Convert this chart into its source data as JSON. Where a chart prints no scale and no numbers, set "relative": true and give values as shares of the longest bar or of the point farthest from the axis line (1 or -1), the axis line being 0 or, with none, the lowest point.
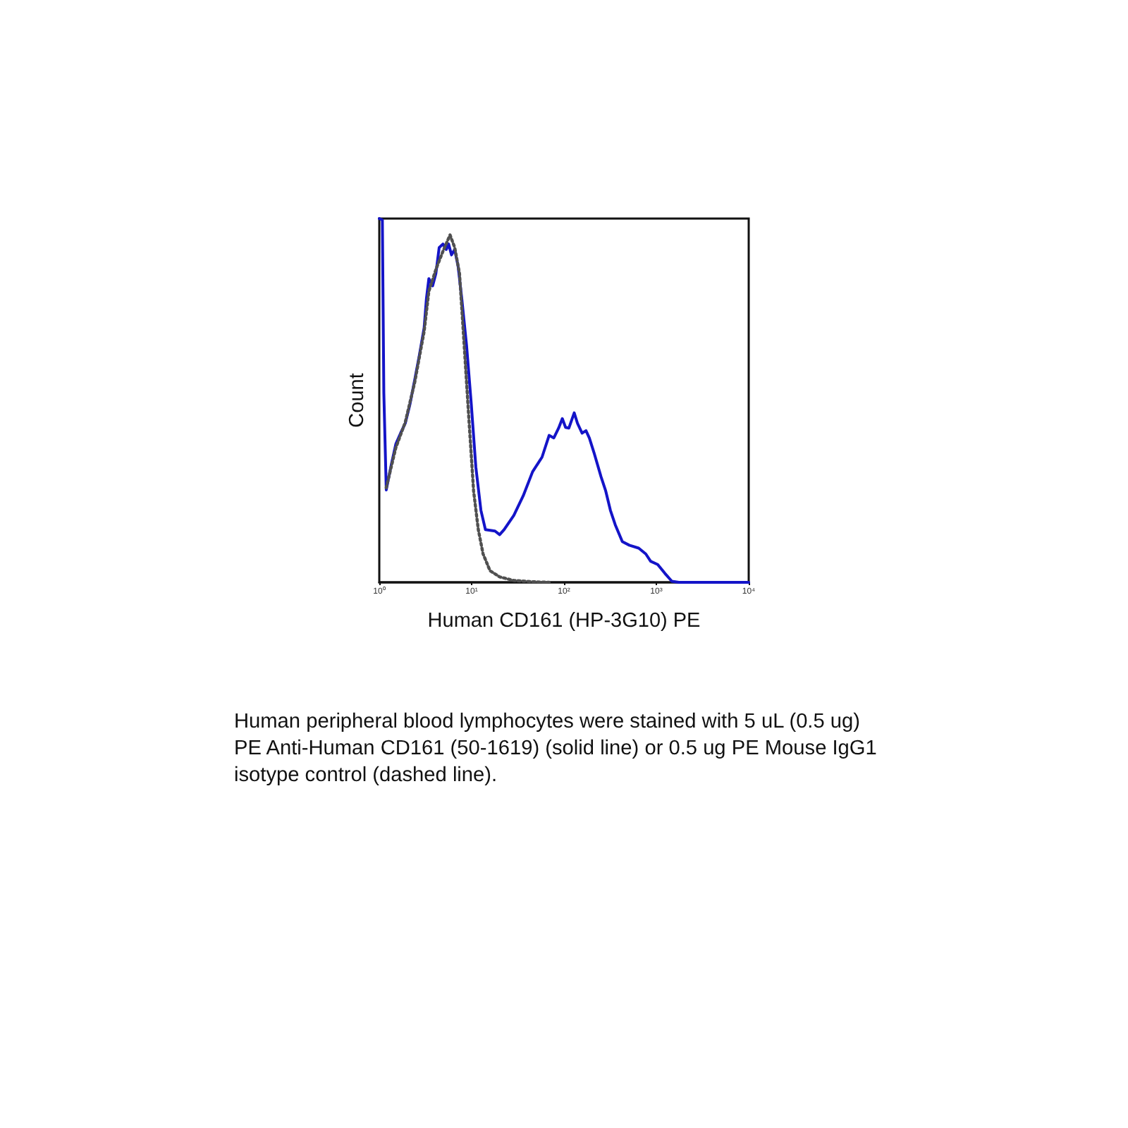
{
  "chart_data": {
    "type": "line",
    "relative": true,
    "log": "x",
    "xlabel": "Human CD161 (HP-3G10) PE",
    "ylabel": "Count",
    "xlim": [
      1,
      10000
    ],
    "xticks": [
      {
        "value": 1,
        "label": "10⁰"
      },
      {
        "value": 10,
        "label": "10¹"
      },
      {
        "value": 100,
        "label": "10²"
      },
      {
        "value": 1000,
        "label": "10³"
      },
      {
        "value": 10000,
        "label": "10⁴"
      }
    ],
    "series": [
      {
        "color": "#1414c8",
        "line_style": "solid",
        "x": [
          1,
          1.08,
          1.12,
          1.19,
          1.34,
          1.51,
          1.7,
          1.91,
          2.15,
          2.42,
          2.71,
          3.06,
          3.24,
          3.44,
          3.78,
          4.1,
          4.45,
          4.89,
          5.31,
          5.63,
          6.05,
          6.56,
          7.14,
          7.82,
          8.82,
          9.91,
          11.1,
          12.6,
          14.1,
          17.9,
          20.1,
          22.5,
          28.6,
          36.2,
          45.7,
          57.8,
          69,
          77.6,
          87.5,
          95.9,
          104,
          113,
          129,
          140,
          157,
          173,
          188,
          211,
          252,
          283,
          318,
          359,
          428,
          510,
          644,
          769,
          867,
          1035,
          1234,
          1472,
          1755,
          10000
        ],
        "values": [
          1,
          0.996,
          0.52,
          0.254,
          0.32,
          0.38,
          0.41,
          0.437,
          0.49,
          0.557,
          0.623,
          0.7,
          0.78,
          0.835,
          0.815,
          0.849,
          0.92,
          0.93,
          0.915,
          0.93,
          0.9,
          0.915,
          0.868,
          0.78,
          0.65,
          0.49,
          0.317,
          0.198,
          0.145,
          0.141,
          0.131,
          0.145,
          0.184,
          0.238,
          0.304,
          0.344,
          0.404,
          0.397,
          0.424,
          0.45,
          0.426,
          0.424,
          0.466,
          0.437,
          0.41,
          0.417,
          0.397,
          0.357,
          0.29,
          0.251,
          0.198,
          0.158,
          0.112,
          0.102,
          0.094,
          0.078,
          0.058,
          0.049,
          0.025,
          0.003,
          0,
          0
        ]
      },
      {
        "color": "#505050",
        "line_style": "dotted",
        "x": [
          1.19,
          1.51,
          1.91,
          2.42,
          3.06,
          3.44,
          4.1,
          4.89,
          5.84,
          6.56,
          7.39,
          8.31,
          9.33,
          10.5,
          11.8,
          13.3,
          15.8,
          20.1,
          28.6,
          51.5,
          69
        ],
        "values": [
          0.26,
          0.37,
          0.44,
          0.55,
          0.69,
          0.8,
          0.86,
          0.91,
          0.955,
          0.92,
          0.849,
          0.65,
          0.45,
          0.251,
          0.145,
          0.078,
          0.032,
          0.015,
          0.005,
          0.001,
          0
        ]
      }
    ],
    "annotations": [
      "Human peripheral blood lymphocytes were stained with 5 uL (0.5 ug) PE Anti-Human CD161 (50-1619) (solid line) or 0.5 ug PE Mouse IgG1 isotype control (dashed line)."
    ]
  }
}
